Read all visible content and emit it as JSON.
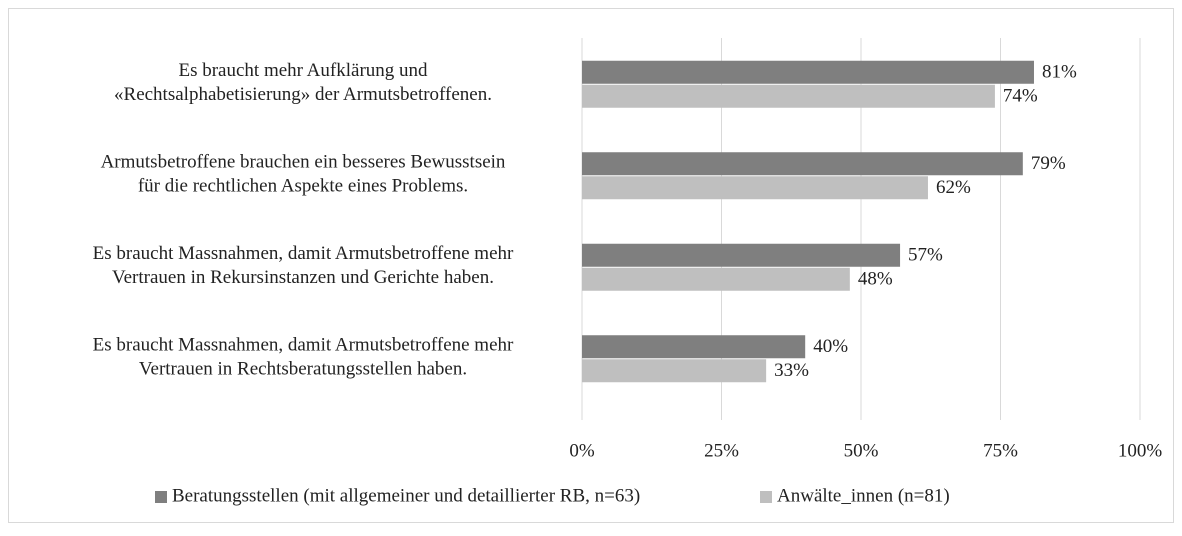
{
  "chart_data": {
    "type": "bar",
    "orientation": "horizontal",
    "categories": [
      [
        "Es braucht mehr Aufklärung und",
        "«Rechtsalphabetisierung» der Armutsbetroffenen."
      ],
      [
        "Armutsbetroffene brauchen ein besseres Bewusstsein",
        "für die rechtlichen Aspekte eines Problems."
      ],
      [
        "Es braucht Massnahmen, damit Armutsbetroffene mehr",
        "Vertrauen in Rekursinstanzen und Gerichte haben."
      ],
      [
        "Es braucht Massnahmen, damit Armutsbetroffene mehr",
        "Vertrauen in Rechtsberatungsstellen haben."
      ]
    ],
    "series": [
      {
        "name": "Beratungsstellen (mit allgemeiner und detaillierter RB, n=63)",
        "color": "#7f7f7f",
        "values": [
          81,
          79,
          57,
          40
        ],
        "value_labels": [
          "81%",
          "79%",
          "57%",
          "40%"
        ]
      },
      {
        "name": "Anwälte_innen (n=81)",
        "color": "#bfbfbf",
        "values": [
          74,
          62,
          48,
          33
        ],
        "value_labels": [
          "74%",
          "62%",
          "48%",
          "33%"
        ]
      }
    ],
    "xlim": [
      0,
      100
    ],
    "xticks": [
      {
        "value": 0,
        "label": "0%"
      },
      {
        "value": 25,
        "label": "25%"
      },
      {
        "value": 50,
        "label": "50%"
      },
      {
        "value": 75,
        "label": "75%"
      },
      {
        "value": 100,
        "label": "100%"
      }
    ],
    "grid": true,
    "legend": "bottom"
  }
}
